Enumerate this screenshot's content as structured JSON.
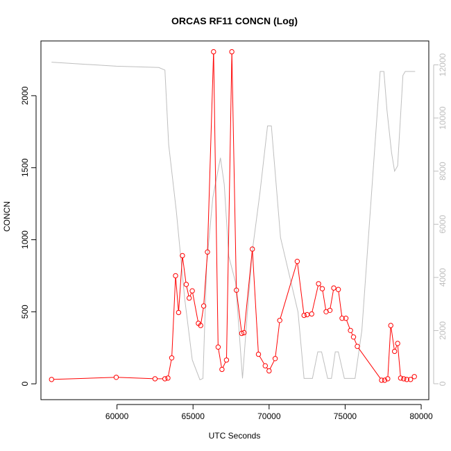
{
  "chart_data": {
    "type": "line",
    "title": "ORCAS RF11 CONCN (Log)",
    "xlabel": "UTC Seconds",
    "ylabel": "CONCN",
    "xlim": [
      55000,
      80500
    ],
    "ylim": [
      -110,
      2380
    ],
    "y2lim": [
      -600,
      12900
    ],
    "xticks": [
      60000,
      65000,
      70000,
      75000,
      80000
    ],
    "yticks": [
      0,
      500,
      1000,
      1500,
      2000
    ],
    "y2ticks": [
      0,
      2000,
      4000,
      6000,
      8000,
      10000,
      12000
    ],
    "grid": false,
    "colors": {
      "primary": "#ff0000",
      "secondary": "#bebebe",
      "axis": "#000000"
    },
    "series": [
      {
        "axis": "left",
        "color": "#ff0000",
        "x": [
          55700,
          59950,
          62500,
          63150,
          63350,
          63600,
          63850,
          64050,
          64300,
          64550,
          64750,
          64950,
          65350,
          65500,
          65700,
          65950,
          66350,
          66650,
          66900,
          67200,
          67550,
          67850,
          68200,
          68350,
          68900,
          69300,
          69750,
          70000,
          70400,
          70700,
          71850,
          72300,
          72500,
          72800,
          73250,
          73500,
          73750,
          74000,
          74250,
          74550,
          74800,
          75050,
          75350,
          75550,
          75800,
          77400,
          77600,
          77800,
          78000,
          78250,
          78450,
          78650,
          78850,
          79050,
          79300,
          79550
        ],
        "y": [
          30,
          45,
          35,
          35,
          40,
          180,
          750,
          495,
          890,
          690,
          595,
          645,
          420,
          405,
          540,
          915,
          2305,
          255,
          100,
          165,
          2305,
          650,
          350,
          355,
          935,
          205,
          125,
          90,
          175,
          440,
          850,
          475,
          480,
          485,
          695,
          660,
          500,
          510,
          665,
          655,
          455,
          455,
          370,
          325,
          260,
          25,
          25,
          35,
          405,
          225,
          280,
          40,
          35,
          30,
          30,
          50
        ]
      },
      {
        "axis": "right",
        "color": "#bebebe",
        "x": [
          55700,
          59950,
          62750,
          63150,
          63400,
          63900,
          64450,
          64950,
          65450,
          65650,
          65900,
          66300,
          66800,
          67050,
          67350,
          67800,
          68250,
          68550,
          68900,
          69400,
          69900,
          70150,
          70750,
          71900,
          72300,
          72850,
          73200,
          73450,
          73850,
          74100,
          74350,
          74550,
          74950,
          75650,
          76100,
          77300,
          77550,
          77750,
          78050,
          78250,
          78450,
          78800,
          78950,
          79250,
          79600
        ],
        "y": [
          12100,
          11950,
          11900,
          11800,
          9000,
          6500,
          3200,
          900,
          150,
          200,
          4500,
          7000,
          8500,
          7500,
          4800,
          3800,
          200,
          2500,
          5000,
          7200,
          9700,
          9700,
          5500,
          2700,
          200,
          200,
          1200,
          1200,
          200,
          200,
          1200,
          1200,
          200,
          200,
          2000,
          11750,
          11750,
          10300,
          8700,
          8000,
          8200,
          11600,
          11750,
          11750,
          11750
        ]
      }
    ]
  }
}
